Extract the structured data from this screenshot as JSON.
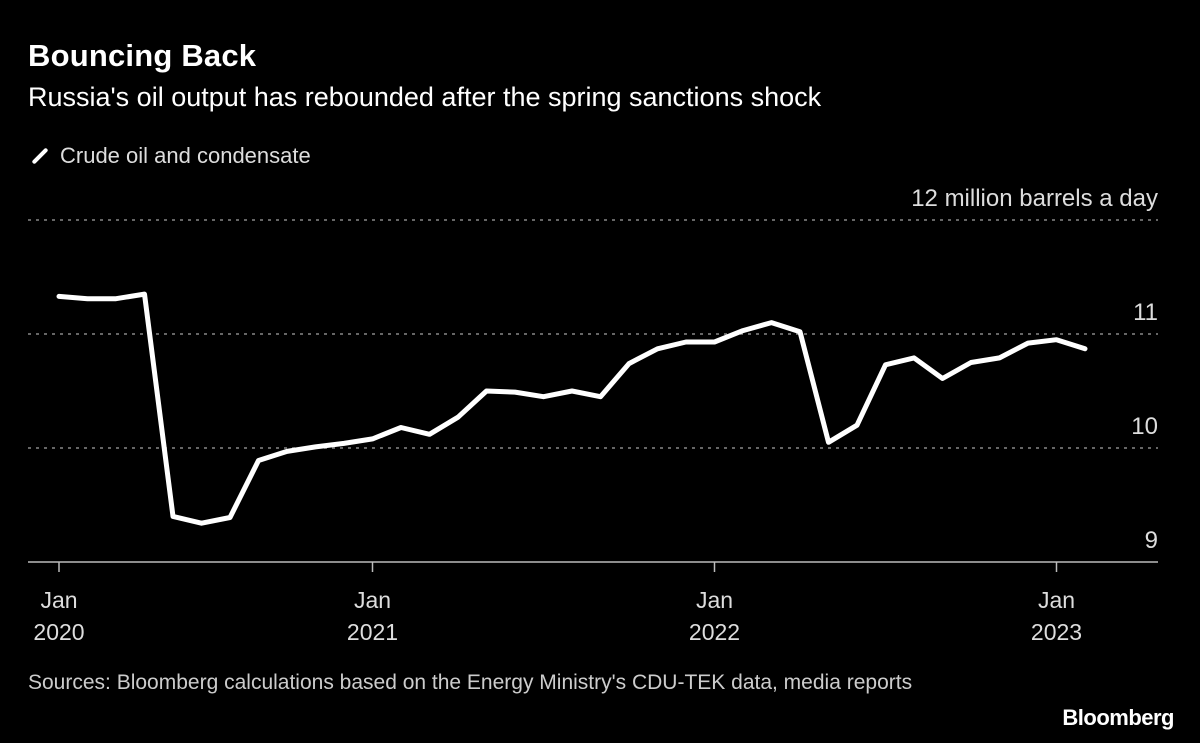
{
  "chart_data": {
    "type": "line",
    "title": "Bouncing Back",
    "subtitle": "Russia's oil output has rebounded after the spring sanctions shock",
    "unit_label": "12 million barrels a day",
    "ylim": [
      9,
      12
    ],
    "yticks": [
      {
        "value": 12,
        "label": "12 million barrels a day"
      },
      {
        "value": 11,
        "label": "11"
      },
      {
        "value": 10,
        "label": "10"
      },
      {
        "value": 9,
        "label": "9"
      }
    ],
    "xticks": [
      {
        "index": 0,
        "month": "Jan",
        "year": "2020"
      },
      {
        "index": 11,
        "month": "Jan",
        "year": "2021"
      },
      {
        "index": 23,
        "month": "Jan",
        "year": "2022"
      },
      {
        "index": 35,
        "month": "Jan",
        "year": "2023"
      }
    ],
    "grid": true,
    "legend_position": "top-left",
    "series": [
      {
        "name": "Crude oil and condensate",
        "color": "#ffffff",
        "values": [
          11.33,
          11.31,
          11.31,
          11.35,
          9.4,
          9.34,
          9.39,
          9.89,
          9.97,
          10.01,
          10.04,
          10.08,
          10.18,
          10.12,
          10.27,
          10.5,
          10.49,
          10.45,
          10.5,
          10.45,
          10.74,
          10.87,
          10.93,
          10.93,
          11.03,
          11.1,
          11.02,
          10.05,
          10.2,
          10.73,
          10.79,
          10.61,
          10.75,
          10.79,
          10.92,
          10.95,
          10.87
        ]
      }
    ],
    "source": "Sources: Bloomberg calculations based on the Energy Ministry's CDU-TEK data, media reports",
    "logo": "Bloomberg"
  }
}
